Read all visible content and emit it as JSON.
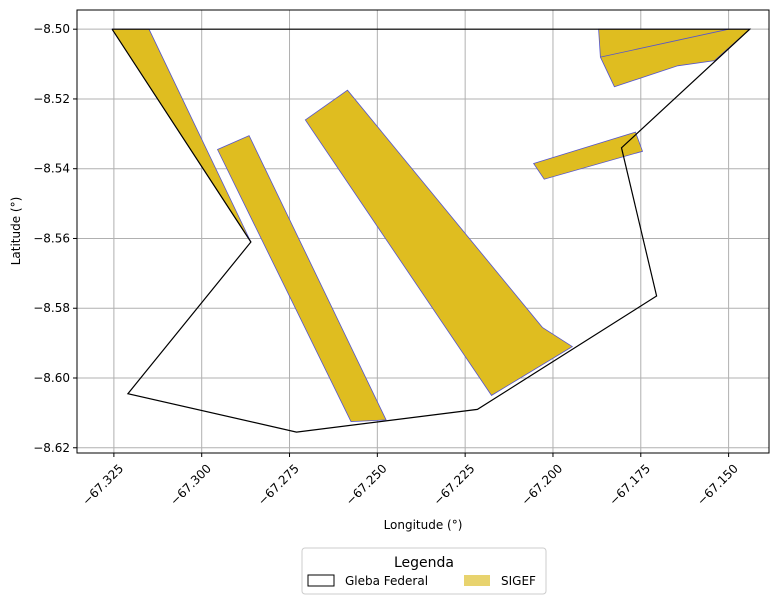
{
  "chart_data": {
    "type": "map",
    "xlabel": "Longitude (°)",
    "ylabel": "Latitude (°)",
    "xlim": [
      -67.3355,
      -67.1385
    ],
    "ylim": [
      -8.6215,
      -8.4945
    ],
    "xticks": [
      -67.325,
      -67.3,
      -67.275,
      -67.25,
      -67.225,
      -67.2,
      -67.175,
      -67.15
    ],
    "xtick_labels": [
      "−67.325",
      "−67.300",
      "−67.275",
      "−67.250",
      "−67.225",
      "−67.200",
      "−67.175",
      "−67.150"
    ],
    "yticks": [
      -8.5,
      -8.52,
      -8.54,
      -8.56,
      -8.58,
      -8.6,
      -8.62
    ],
    "ytick_labels": [
      "−8.50",
      "−8.52",
      "−8.54",
      "−8.56",
      "−8.58",
      "−8.60",
      "−8.62"
    ],
    "grid": true,
    "legend": {
      "title": "Legenda",
      "placement": "bottom-center",
      "entries": [
        {
          "label": "Gleba Federal",
          "style": "outline",
          "color": "#000000"
        },
        {
          "label": "SIGEF",
          "style": "fill",
          "color": "#e8d36e"
        }
      ]
    },
    "gleba_federal": {
      "name": "Gleba Federal",
      "stroke": "#000000",
      "coords": [
        [
          -67.3255,
          -8.5
        ],
        [
          -67.144,
          -8.5
        ],
        [
          -67.1805,
          -8.534
        ],
        [
          -67.1705,
          -8.5765
        ],
        [
          -67.2215,
          -8.609
        ],
        [
          -67.273,
          -8.6155
        ],
        [
          -67.321,
          -8.6045
        ],
        [
          -67.286,
          -8.561
        ],
        [
          -67.3255,
          -8.5
        ]
      ]
    },
    "sigef": {
      "name": "SIGEF",
      "fill": "#dfbd20",
      "stroke": "#5555cc",
      "polygons": [
        [
          [
            -67.3255,
            -8.5
          ],
          [
            -67.315,
            -8.5
          ],
          [
            -67.286,
            -8.561
          ]
        ],
        [
          [
            -67.2955,
            -8.5345
          ],
          [
            -67.2865,
            -8.5305
          ],
          [
            -67.2475,
            -8.612
          ],
          [
            -67.2575,
            -8.6125
          ]
        ],
        [
          [
            -67.2705,
            -8.526
          ],
          [
            -67.2585,
            -8.5175
          ],
          [
            -67.203,
            -8.5855
          ],
          [
            -67.1945,
            -8.591
          ],
          [
            -67.2175,
            -8.605
          ]
        ],
        [
          [
            -67.2055,
            -8.5385
          ],
          [
            -67.1765,
            -8.5295
          ],
          [
            -67.1745,
            -8.535
          ],
          [
            -67.2025,
            -8.543
          ]
        ],
        [
          [
            -67.187,
            -8.5
          ],
          [
            -67.144,
            -8.5
          ],
          [
            -67.154,
            -8.509
          ],
          [
            -67.1645,
            -8.5105
          ],
          [
            -67.1825,
            -8.5165
          ],
          [
            -67.1865,
            -8.508
          ]
        ]
      ],
      "internal_lines": [
        [
          [
            -67.1865,
            -8.508
          ],
          [
            -67.15,
            -8.5
          ]
        ]
      ]
    }
  }
}
